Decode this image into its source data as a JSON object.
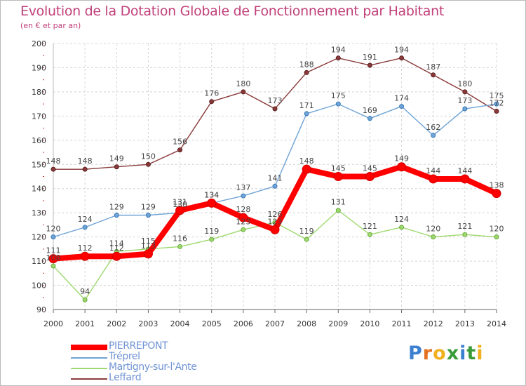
{
  "header": {
    "title": "Evolution de la Dotation Globale de Fonctionnement par Habitant",
    "subtitle": "(en € et par an)"
  },
  "logo": {
    "letters": [
      "P",
      "r",
      "o",
      "x",
      "i",
      "t",
      "i"
    ],
    "colors": [
      "#3a7fd0",
      "#e2721f",
      "#f0b01f",
      "#3a9b3a",
      "#3a7fd0",
      "#3a9b3a",
      "#f0b01f"
    ]
  },
  "chart_data": {
    "type": "line",
    "title": "Evolution de la Dotation Globale de Fonctionnement par Habitant",
    "subtitle": "(en € et par an)",
    "xlabel": "",
    "ylabel": "",
    "ylim": [
      90,
      200
    ],
    "yticks": [
      90,
      100,
      110,
      120,
      130,
      140,
      150,
      160,
      170,
      180,
      190,
      200
    ],
    "x": [
      "2000",
      "2001",
      "2002",
      "2003",
      "2004",
      "2005",
      "2006",
      "2007",
      "2008",
      "2009",
      "2010",
      "2011",
      "2012",
      "2013",
      "2014"
    ],
    "grid": true,
    "legend_position": "bottom-left",
    "series": [
      {
        "name": "PIERREPONT",
        "color": "#ff0000",
        "values": [
          111,
          112,
          112,
          113,
          131,
          134,
          128,
          123,
          148,
          145,
          145,
          149,
          144,
          144,
          138
        ]
      },
      {
        "name": "Tréprel",
        "color": "#6fa4d6",
        "values": [
          120,
          124,
          129,
          129,
          130,
          134,
          137,
          141,
          171,
          175,
          169,
          174,
          162,
          173,
          175
        ]
      },
      {
        "name": "Martigny-sur-l'Ante",
        "color": "#9ed96e",
        "values": [
          108,
          94,
          114,
          115,
          116,
          119,
          123,
          126,
          119,
          131,
          121,
          124,
          120,
          121,
          120
        ]
      },
      {
        "name": "Leffard",
        "color": "#8b3a3a",
        "values": [
          148,
          148,
          149,
          150,
          156,
          176,
          180,
          173,
          188,
          194,
          191,
          194,
          187,
          180,
          172
        ]
      }
    ],
    "data_labels": [
      [
        "111",
        "112",
        "112",
        "113",
        "131",
        "134",
        "128",
        "123",
        "148",
        "145",
        "145",
        "149",
        "144",
        "144",
        "138"
      ],
      [
        "120",
        "124",
        "129",
        "129",
        "130",
        "134",
        "137",
        "141",
        "171",
        "175",
        "169",
        "174",
        "162",
        "173",
        "175"
      ],
      [
        "108",
        "94",
        "114",
        "115",
        "116",
        "119",
        "123",
        "126",
        "119",
        "131",
        "121",
        "124",
        "120",
        "121",
        "120"
      ],
      [
        "148",
        "148",
        "149",
        "150",
        "156",
        "176",
        "180",
        "173",
        "188",
        "194",
        "191",
        "194",
        "187",
        "180",
        "172"
      ]
    ]
  }
}
